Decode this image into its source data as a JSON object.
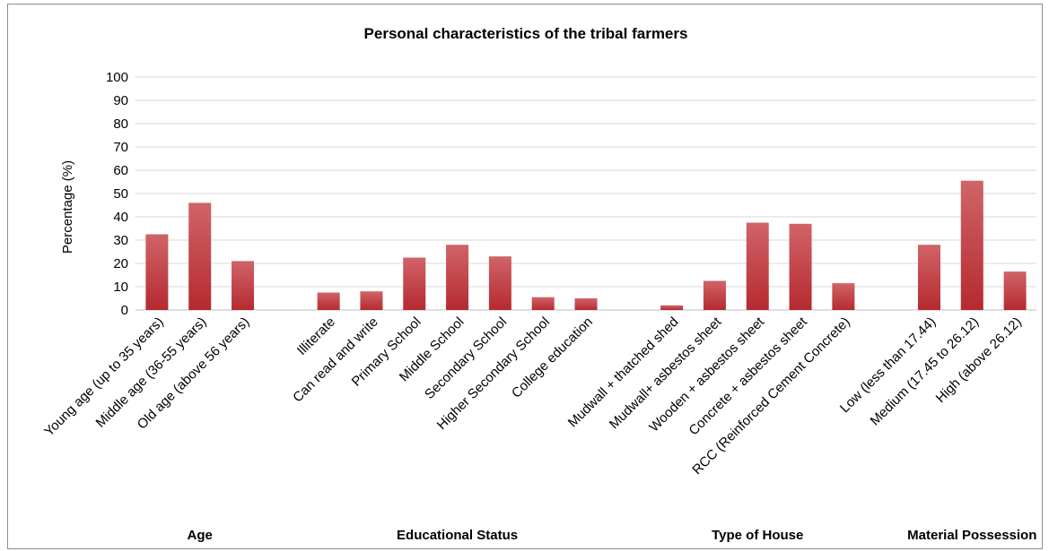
{
  "chart_data": {
    "type": "bar",
    "title": "Personal characteristics of the tribal farmers",
    "ylabel": "Percentage (%)",
    "ylim": [
      0,
      100
    ],
    "yticks": [
      0,
      10,
      20,
      30,
      40,
      50,
      60,
      70,
      80,
      90,
      100
    ],
    "grid": true,
    "bar_color": "#c0393e",
    "groups": [
      {
        "name": "Age",
        "categories": [
          "Young age (up to 35 years)",
          "Middle age (36-55 years)",
          "Old age (above 56 years)"
        ],
        "values": [
          32.5,
          46,
          21
        ]
      },
      {
        "name": "Educational Status",
        "categories": [
          "Illiterate",
          "Can read and write",
          "Primary School",
          "Middle School",
          "Secondary School",
          "Higher Secondary School",
          "College education"
        ],
        "values": [
          7.5,
          8,
          22.5,
          28,
          23,
          5.5,
          5
        ]
      },
      {
        "name": "Type of House",
        "categories": [
          "Mudwall + thatched shed",
          "Mudwall+ asbestos sheet",
          "Wooden + asbestos sheet",
          "Concrete + asbestos sheet",
          "RCC (Reinforced Cement Concrete)"
        ],
        "values": [
          2,
          12.5,
          37.5,
          37,
          11.5
        ]
      },
      {
        "name": "Material Possession",
        "categories": [
          "Low (less than 17.44)",
          "Medium (17.45 to 26.12)",
          "High (above 26.12)"
        ],
        "values": [
          28,
          55.5,
          16.5
        ]
      }
    ]
  }
}
